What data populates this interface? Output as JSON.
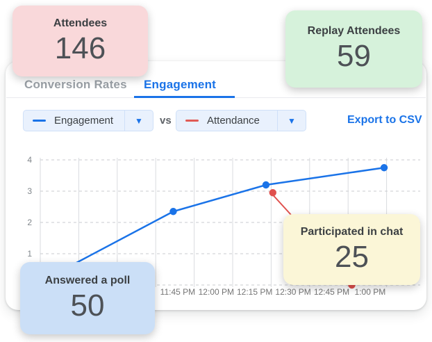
{
  "stat_cards": {
    "attendees": {
      "label": "Attendees",
      "value": "146"
    },
    "replay": {
      "label": "Replay Attendees",
      "value": "59"
    }
  },
  "tabs": {
    "conversion_rates": "Conversion Rates",
    "engagement": "Engagement"
  },
  "controls": {
    "series_a": "Engagement",
    "vs_label": "vs",
    "series_b": "Attendance",
    "export_label": "Export to CSV"
  },
  "callouts": {
    "poll": {
      "label": "Answered a poll",
      "value": "50"
    },
    "chat": {
      "label": "Participated in chat",
      "value": "25"
    }
  },
  "colors": {
    "accent_blue": "#1a73e8",
    "series_red": "#e0504d",
    "inactive_tab_gray": "#9aa0a6",
    "card_pink": "#f9d8da",
    "card_green": "#d6f2db",
    "card_blue": "#cbdff7",
    "card_yellow": "#fbf6d7"
  },
  "chart_data": {
    "type": "line",
    "title": "",
    "xlabel": "",
    "ylabel": "",
    "x_labels": [
      "11:45 PM",
      "12:00 PM",
      "12:15 PM",
      "12:30 PM",
      "12:45 PM",
      "1:00 PM"
    ],
    "y_ticks": [
      0,
      1,
      2,
      3,
      4
    ],
    "y_tick_labels_visible": [
      1,
      2,
      3,
      4
    ],
    "ylim": [
      0,
      4
    ],
    "grid": true,
    "legend_position": "none",
    "series": [
      {
        "name": "Engagement",
        "color": "#1a73e8",
        "line": true,
        "points": [
          {
            "x": 0.0,
            "y": 0.1,
            "marker": false
          },
          {
            "x": 0.35,
            "y": 2.35,
            "marker": true
          },
          {
            "x": 0.594,
            "y": 3.2,
            "marker": true
          },
          {
            "x": 0.905,
            "y": 3.75,
            "marker": true
          }
        ]
      },
      {
        "name": "Attendance",
        "color": "#e0504d",
        "line": false,
        "points": [
          {
            "x": 0.612,
            "y": 2.95,
            "marker": true
          },
          {
            "x": 0.82,
            "y": 0,
            "marker": true
          }
        ]
      }
    ]
  }
}
